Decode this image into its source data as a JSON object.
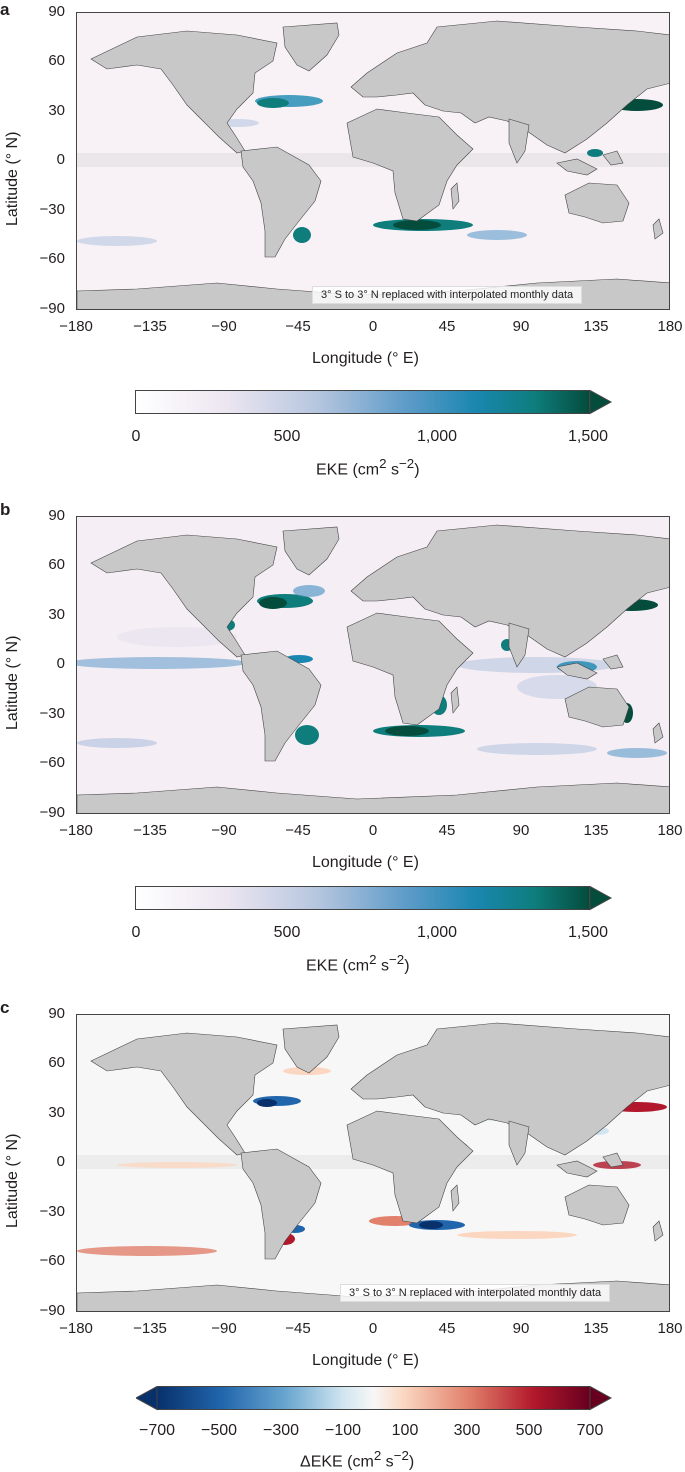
{
  "panels": [
    {
      "letter": "a",
      "ylabel": "Latitude (° N)",
      "xlabel": "Longitude (° E)",
      "yticks": [
        "90",
        "60",
        "30",
        "0",
        "−30",
        "−60",
        "−90"
      ],
      "xticks": [
        "−180",
        "−135",
        "−90",
        "−45",
        "0",
        "45",
        "90",
        "135",
        "180"
      ],
      "note": "3° S to 3° N replaced with interpolated monthly data",
      "colorbar": {
        "label": "EKE (cm",
        "ticks": [
          "0",
          "500",
          "1,000",
          "1,500"
        ],
        "colors": [
          "#ffffff",
          "#ece6f1",
          "#b6c6df",
          "#5c9bc8",
          "#1a87b0",
          "#0e7d7c",
          "#044c3c"
        ]
      }
    },
    {
      "letter": "b",
      "ylabel": "Latitude (° N)",
      "xlabel": "Longitude (° E)",
      "yticks": [
        "90",
        "60",
        "30",
        "0",
        "−30",
        "−60",
        "−90"
      ],
      "xticks": [
        "−180",
        "−135",
        "−90",
        "−45",
        "0",
        "45",
        "90",
        "135",
        "180"
      ],
      "note": "",
      "colorbar": {
        "label": "EKE (cm",
        "ticks": [
          "0",
          "500",
          "1,000",
          "1,500"
        ],
        "colors": [
          "#ffffff",
          "#ece6f1",
          "#b6c6df",
          "#5c9bc8",
          "#1a87b0",
          "#0e7d7c",
          "#044c3c"
        ]
      }
    },
    {
      "letter": "c",
      "ylabel": "Latitude (° N)",
      "xlabel": "Longitude (° E)",
      "yticks": [
        "90",
        "60",
        "30",
        "0",
        "−30",
        "−60",
        "−90"
      ],
      "xticks": [
        "−180",
        "−135",
        "−90",
        "−45",
        "0",
        "45",
        "90",
        "135",
        "180"
      ],
      "note": "3° S to 3° N replaced with interpolated monthly data",
      "colorbar": {
        "label": "ΔEKE (cm",
        "ticks": [
          "−700",
          "−500",
          "−300",
          "−100",
          "100",
          "300",
          "500",
          "700"
        ],
        "colors": [
          "#08306b",
          "#2166ac",
          "#6aa7d0",
          "#d1e5f0",
          "#f7f7f7",
          "#fbd7c1",
          "#e1806b",
          "#b2182b",
          "#67001f"
        ]
      }
    }
  ],
  "colors": {
    "land": "#c8c8c8",
    "ocean_seq": "#f6eef5",
    "ocean_div": "#f5f5f5",
    "accent_dark": "#044c3c",
    "accent_red": "#9e0b1f",
    "accent_blue": "#1a4f8f"
  }
}
